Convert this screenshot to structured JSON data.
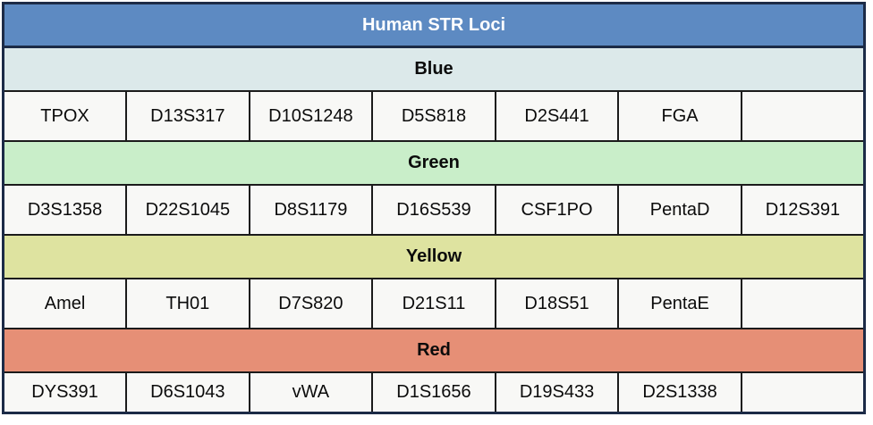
{
  "table": {
    "title": "Human STR Loci",
    "columns": 7,
    "colors": {
      "title_bg": "#5d8ac2",
      "title_text": "#ffffff",
      "outer_border": "#1c2b47",
      "cell_border": "#1b1b1b",
      "cell_bg": "#f8f8f6",
      "blue_header_bg": "#dce9ea",
      "green_header_bg": "#c9eec9",
      "yellow_header_bg": "#dee3a0",
      "red_header_bg": "#e68f76"
    },
    "sections": [
      {
        "name": "Blue",
        "loci": [
          "TPOX",
          "D13S317",
          "D10S1248",
          "D5S818",
          "D2S441",
          "FGA",
          ""
        ]
      },
      {
        "name": "Green",
        "loci": [
          "D3S1358",
          "D22S1045",
          "D8S1179",
          "D16S539",
          "CSF1PO",
          "PentaD",
          "D12S391"
        ]
      },
      {
        "name": "Yellow",
        "loci": [
          "Amel",
          "TH01",
          "D7S820",
          "D21S11",
          "D18S51",
          "PentaE",
          ""
        ]
      },
      {
        "name": "Red",
        "loci": [
          "DYS391",
          "D6S1043",
          "vWA",
          "D1S1656",
          "D19S433",
          "D2S1338",
          ""
        ]
      }
    ]
  }
}
